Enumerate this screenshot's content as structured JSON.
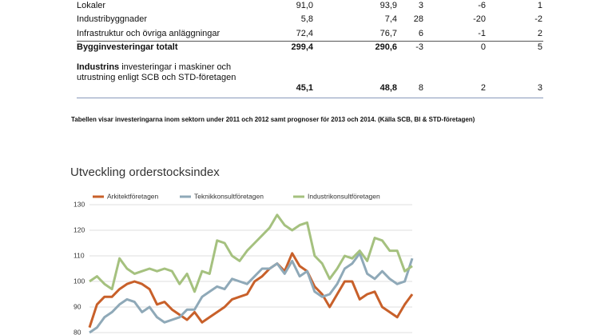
{
  "table": {
    "rows": [
      {
        "label": "Lokaler",
        "cells": [
          "91,0",
          "93,9",
          "3",
          "-6",
          "1"
        ]
      },
      {
        "label": "Industribyggnader",
        "cells": [
          "5,8",
          "7,4",
          "28",
          "-20",
          "-2"
        ]
      },
      {
        "label": "Infrastruktur och övriga anläggningar",
        "cells": [
          "72,4",
          "76,7",
          "6",
          "-1",
          "2"
        ]
      },
      {
        "label": "Bygginvesteringar totalt",
        "cells": [
          "299,4",
          "290,6",
          "-3",
          "0",
          "5"
        ]
      },
      {
        "label_bold": "Industrins",
        "label": " investeringar i maskiner och utrustning enligt SCB och STD-företagen",
        "cells": [
          "45,1",
          "48,8",
          "8",
          "2",
          "3"
        ]
      }
    ]
  },
  "note": "Tabellen visar investeringarna inom sektorn under 2011 och 2012 samt prognoser för 2013 och 2014. (Källa SCB, BI & STD-företagen)",
  "chart_data": {
    "type": "line",
    "title": "Utveckling orderstocksindex",
    "ylim": [
      80,
      130
    ],
    "yticks": [
      80,
      90,
      100,
      110,
      120,
      130
    ],
    "grid": true,
    "series": [
      {
        "name": "Arkitektföretagen",
        "color": "#c8602a",
        "values": [
          82,
          91,
          94,
          94,
          97,
          99,
          100,
          99,
          97,
          91,
          92,
          89,
          87,
          85,
          88,
          84,
          86,
          88,
          90,
          93,
          94,
          95,
          100,
          102,
          105,
          107,
          104,
          111,
          106,
          104,
          98,
          95,
          90,
          95,
          100,
          100,
          93,
          95,
          96,
          90,
          88,
          86,
          91,
          95
        ]
      },
      {
        "name": "Teknikkonsultföretagen",
        "color": "#8fa9b8",
        "values": [
          80,
          82,
          86,
          88,
          91,
          93,
          92,
          88,
          90,
          86,
          84,
          85,
          86,
          89,
          89,
          94,
          96,
          98,
          97,
          101,
          100,
          99,
          102,
          105,
          105,
          107,
          103,
          108,
          102,
          104,
          96,
          94,
          95,
          99,
          105,
          107,
          111,
          103,
          101,
          104,
          101,
          99,
          100,
          109
        ]
      },
      {
        "name": "Industrikonsultföretagen",
        "color": "#a5c17f",
        "values": [
          100,
          102,
          99,
          97,
          109,
          105,
          103,
          104,
          105,
          104,
          105,
          104,
          99,
          103,
          96,
          104,
          103,
          116,
          115,
          110,
          108,
          112,
          115,
          118,
          121,
          126,
          122,
          120,
          122,
          123,
          110,
          107,
          101,
          105,
          110,
          109,
          112,
          108,
          117,
          116,
          112,
          112,
          104,
          106
        ]
      }
    ]
  }
}
